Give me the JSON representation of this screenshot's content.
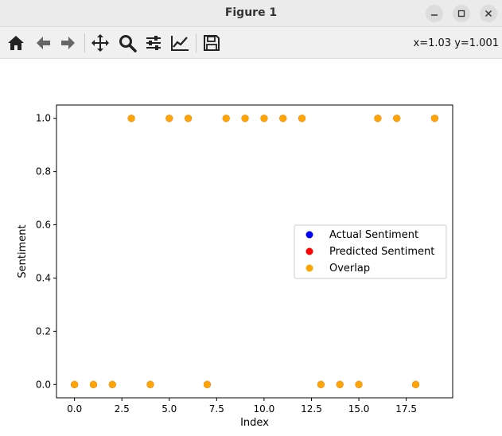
{
  "window": {
    "title": "Figure 1",
    "minimize_icon": "minimize-icon",
    "maximize_icon": "maximize-icon",
    "close_icon": "close-icon"
  },
  "toolbar": {
    "items": [
      "home-icon",
      "back-arrow-icon",
      "forward-arrow-icon",
      "pan-icon",
      "zoom-icon",
      "subplots-config-icon",
      "edit-axes-icon",
      "save-icon"
    ],
    "coords": "x=1.03 y=1.001"
  },
  "chart_data": {
    "type": "scatter",
    "xlabel": "Index",
    "ylabel": "Sentiment",
    "xlim": [
      -0.95,
      19.95
    ],
    "ylim": [
      -0.05,
      1.05
    ],
    "x_ticks": [
      "0.0",
      "2.5",
      "5.0",
      "7.5",
      "10.0",
      "12.5",
      "15.0",
      "17.5"
    ],
    "x_tick_values": [
      0,
      2.5,
      5,
      7.5,
      10,
      12.5,
      15,
      17.5
    ],
    "y_ticks": [
      "0.0",
      "0.2",
      "0.4",
      "0.6",
      "0.8",
      "1.0"
    ],
    "y_tick_values": [
      0,
      0.2,
      0.4,
      0.6,
      0.8,
      1.0
    ],
    "legend_position": "center-right",
    "series": [
      {
        "name": "Actual Sentiment",
        "color": "#0000ff",
        "x": [
          0,
          1,
          2,
          3,
          4,
          5,
          6,
          7,
          8,
          9,
          10,
          11,
          12,
          13,
          14,
          15,
          16,
          17,
          18,
          19
        ],
        "y": [
          0,
          0,
          0,
          1,
          0,
          1,
          1,
          0,
          1,
          1,
          1,
          1,
          1,
          0,
          0,
          0,
          1,
          1,
          0,
          1
        ]
      },
      {
        "name": "Predicted Sentiment",
        "color": "#ff0000",
        "x": [
          0,
          1,
          2,
          3,
          4,
          5,
          6,
          7,
          8,
          9,
          10,
          11,
          12,
          13,
          14,
          15,
          16,
          17,
          18,
          19
        ],
        "y": [
          0,
          0,
          0,
          1,
          0,
          1,
          1,
          0,
          1,
          1,
          1,
          1,
          1,
          0,
          0,
          0,
          1,
          1,
          0,
          1
        ]
      },
      {
        "name": "Overlap",
        "color": "#ffa500",
        "x": [
          0,
          1,
          2,
          3,
          4,
          5,
          6,
          7,
          8,
          9,
          10,
          11,
          12,
          13,
          14,
          15,
          16,
          17,
          18,
          19
        ],
        "y": [
          0,
          0,
          0,
          1,
          0,
          1,
          1,
          0,
          1,
          1,
          1,
          1,
          1,
          0,
          0,
          0,
          1,
          1,
          0,
          1
        ]
      }
    ]
  }
}
